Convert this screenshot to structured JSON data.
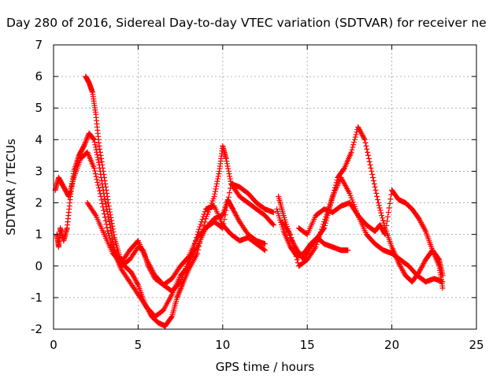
{
  "chart_data": {
    "type": "scatter",
    "title": "Day 280 of 2016, Sidereal Day-to-day VTEC variation (SDTVAR) for receiver ne",
    "xlabel": "GPS time / hours",
    "ylabel": "SDTVAR / TECUs",
    "xlim": [
      0,
      25
    ],
    "ylim": [
      -2,
      7
    ],
    "xticks": [
      0,
      5,
      10,
      15,
      20,
      25
    ],
    "yticks": [
      -2,
      -1,
      0,
      1,
      2,
      3,
      4,
      5,
      6,
      7
    ],
    "grid": true,
    "legend": "none",
    "marker": "+",
    "color": "#ff0000",
    "series": [
      {
        "values": [
          [
            0.2,
            1.0
          ],
          [
            0.3,
            0.6
          ],
          [
            0.4,
            1.2
          ],
          [
            0.6,
            0.8
          ],
          [
            0.8,
            1.2
          ],
          [
            1.0,
            2.2
          ],
          [
            1.2,
            3.0
          ],
          [
            1.5,
            3.5
          ],
          [
            1.8,
            3.8
          ],
          [
            2.1,
            4.2
          ],
          [
            2.4,
            4.0
          ],
          [
            2.7,
            3.2
          ],
          [
            3.0,
            2.2
          ],
          [
            3.3,
            1.4
          ],
          [
            3.6,
            0.5
          ],
          [
            4.0,
            0.0
          ],
          [
            4.5,
            0.2
          ],
          [
            5.0,
            0.6
          ],
          [
            5.3,
            0.5
          ],
          [
            5.6,
            0.0
          ],
          [
            6.0,
            -0.4
          ],
          [
            6.5,
            -0.6
          ],
          [
            7.0,
            -0.4
          ],
          [
            7.5,
            0.0
          ],
          [
            8.0,
            0.3
          ],
          [
            8.5,
            0.9
          ],
          [
            9.0,
            1.2
          ],
          [
            9.5,
            1.5
          ],
          [
            10.0,
            1.6
          ],
          [
            10.3,
            2.1
          ],
          [
            10.6,
            1.8
          ],
          [
            11.0,
            1.4
          ],
          [
            11.5,
            1.0
          ],
          [
            12.0,
            0.8
          ],
          [
            12.5,
            0.7
          ]
        ]
      },
      {
        "values": [
          [
            1.9,
            6.0
          ],
          [
            2.1,
            5.8
          ],
          [
            2.3,
            5.5
          ],
          [
            2.5,
            4.8
          ],
          [
            2.7,
            3.8
          ],
          [
            3.0,
            2.8
          ],
          [
            3.3,
            1.8
          ],
          [
            3.6,
            0.9
          ],
          [
            3.9,
            0.3
          ],
          [
            4.2,
            0.0
          ],
          [
            4.6,
            -0.2
          ],
          [
            5.0,
            -0.6
          ],
          [
            5.4,
            -1.2
          ],
          [
            5.8,
            -1.6
          ],
          [
            6.2,
            -1.8
          ],
          [
            6.6,
            -1.9
          ],
          [
            7.0,
            -1.6
          ],
          [
            7.3,
            -1.0
          ],
          [
            7.6,
            -0.6
          ],
          [
            8.0,
            -0.1
          ],
          [
            8.5,
            0.4
          ],
          [
            9.0,
            1.5
          ],
          [
            9.5,
            2.2
          ],
          [
            9.8,
            3.0
          ],
          [
            10.0,
            3.8
          ],
          [
            10.2,
            3.4
          ],
          [
            10.5,
            2.6
          ],
          [
            11.0,
            2.2
          ],
          [
            11.5,
            2.0
          ],
          [
            12.0,
            1.8
          ],
          [
            12.5,
            1.6
          ],
          [
            13.0,
            1.3
          ]
        ]
      },
      {
        "values": [
          [
            0.1,
            2.4
          ],
          [
            0.3,
            2.8
          ],
          [
            0.6,
            2.5
          ],
          [
            0.9,
            2.2
          ],
          [
            1.2,
            2.8
          ],
          [
            1.6,
            3.4
          ],
          [
            2.0,
            3.6
          ],
          [
            2.4,
            3.1
          ],
          [
            2.8,
            2.2
          ],
          [
            3.2,
            1.1
          ],
          [
            3.6,
            0.4
          ],
          [
            4.0,
            -0.1
          ],
          [
            4.5,
            -0.5
          ],
          [
            5.0,
            -0.9
          ],
          [
            5.5,
            -1.3
          ],
          [
            6.0,
            -1.6
          ],
          [
            6.5,
            -1.4
          ],
          [
            7.0,
            -0.9
          ],
          [
            7.5,
            -0.3
          ],
          [
            8.0,
            0.0
          ],
          [
            8.5,
            1.0
          ],
          [
            9.0,
            1.8
          ],
          [
            9.5,
            1.9
          ],
          [
            10.0,
            1.3
          ],
          [
            10.5,
            1.0
          ],
          [
            11.0,
            0.8
          ],
          [
            11.5,
            0.9
          ],
          [
            12.0,
            0.7
          ],
          [
            12.5,
            0.5
          ]
        ]
      },
      {
        "values": [
          [
            2.0,
            2.0
          ],
          [
            2.5,
            1.6
          ],
          [
            3.0,
            1.0
          ],
          [
            3.5,
            0.4
          ],
          [
            4.0,
            0.1
          ],
          [
            4.5,
            0.5
          ],
          [
            5.0,
            0.8
          ],
          [
            5.5,
            0.2
          ],
          [
            6.0,
            -0.3
          ],
          [
            6.5,
            -0.6
          ],
          [
            7.0,
            -0.8
          ],
          [
            7.5,
            -0.5
          ],
          [
            8.0,
            0.2
          ],
          [
            8.5,
            0.6
          ],
          [
            9.0,
            1.2
          ],
          [
            9.5,
            1.4
          ],
          [
            10.0,
            1.2
          ],
          [
            10.5,
            2.6
          ],
          [
            11.0,
            2.5
          ],
          [
            11.5,
            2.3
          ],
          [
            12.0,
            2.0
          ],
          [
            12.5,
            1.8
          ],
          [
            13.0,
            1.7
          ]
        ]
      },
      {
        "values": [
          [
            13.3,
            2.2
          ],
          [
            13.6,
            1.6
          ],
          [
            14.0,
            0.9
          ],
          [
            14.4,
            0.5
          ],
          [
            14.8,
            0.2
          ],
          [
            15.2,
            0.6
          ],
          [
            15.6,
            0.9
          ],
          [
            16.0,
            1.2
          ],
          [
            16.4,
            2.0
          ],
          [
            16.8,
            2.8
          ],
          [
            17.2,
            3.1
          ],
          [
            17.6,
            3.6
          ],
          [
            18.0,
            4.4
          ],
          [
            18.4,
            4.0
          ],
          [
            18.8,
            3.0
          ],
          [
            19.2,
            2.0
          ],
          [
            19.6,
            1.2
          ],
          [
            20.0,
            0.6
          ],
          [
            20.4,
            0.1
          ],
          [
            20.8,
            -0.3
          ],
          [
            21.2,
            -0.5
          ],
          [
            21.6,
            -0.2
          ],
          [
            22.0,
            0.2
          ],
          [
            22.4,
            0.5
          ],
          [
            22.8,
            0.0
          ],
          [
            23.0,
            -0.7
          ]
        ]
      },
      {
        "values": [
          [
            13.2,
            1.8
          ],
          [
            13.6,
            1.1
          ],
          [
            14.0,
            0.6
          ],
          [
            14.4,
            0.3
          ],
          [
            14.8,
            0.4
          ],
          [
            15.2,
            0.7
          ],
          [
            15.6,
            0.9
          ],
          [
            16.0,
            0.7
          ],
          [
            16.5,
            0.6
          ],
          [
            17.0,
            0.5
          ],
          [
            17.4,
            0.5
          ]
        ]
      },
      {
        "values": [
          [
            13.5,
            1.4
          ],
          [
            14.0,
            1.0
          ],
          [
            14.5,
            0.0
          ],
          [
            15.0,
            0.2
          ],
          [
            15.5,
            0.6
          ],
          [
            16.0,
            1.4
          ],
          [
            16.5,
            2.2
          ],
          [
            17.0,
            2.8
          ],
          [
            17.5,
            2.3
          ],
          [
            18.0,
            1.6
          ],
          [
            18.5,
            1.0
          ],
          [
            19.0,
            0.7
          ],
          [
            19.5,
            0.5
          ],
          [
            20.0,
            0.4
          ],
          [
            20.5,
            0.2
          ],
          [
            21.0,
            0.0
          ],
          [
            21.5,
            -0.3
          ],
          [
            22.0,
            -0.5
          ],
          [
            22.5,
            -0.4
          ],
          [
            23.0,
            -0.5
          ]
        ]
      },
      {
        "values": [
          [
            14.5,
            1.2
          ],
          [
            15.0,
            1.0
          ],
          [
            15.5,
            1.6
          ],
          [
            16.0,
            1.8
          ],
          [
            16.5,
            1.7
          ],
          [
            17.0,
            1.9
          ],
          [
            17.5,
            2.0
          ],
          [
            18.0,
            1.6
          ],
          [
            18.5,
            1.3
          ],
          [
            19.0,
            1.1
          ],
          [
            19.3,
            1.3
          ],
          [
            19.6,
            1.0
          ],
          [
            20.0,
            2.4
          ],
          [
            20.4,
            2.1
          ],
          [
            20.8,
            2.0
          ],
          [
            21.2,
            1.8
          ],
          [
            21.6,
            1.5
          ],
          [
            22.0,
            1.1
          ],
          [
            22.4,
            0.5
          ],
          [
            22.8,
            0.2
          ],
          [
            23.0,
            -0.3
          ]
        ]
      }
    ]
  }
}
